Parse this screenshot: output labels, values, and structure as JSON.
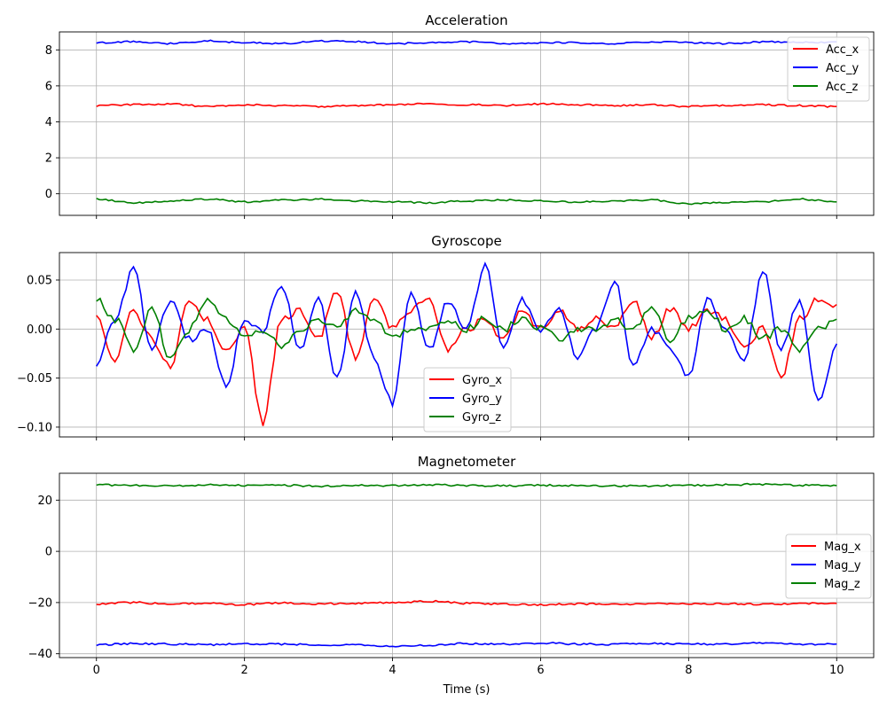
{
  "figure": {
    "xlabel": "Time (s)"
  },
  "chart_data": [
    {
      "type": "line",
      "title": "Acceleration",
      "xlabel": "",
      "ylabel": "",
      "xlim": [
        -0.5,
        10.5
      ],
      "ylim": [
        -1.2,
        9.0
      ],
      "xticks": [
        0,
        2,
        4,
        6,
        8,
        10
      ],
      "xticklabels": [
        "",
        "",
        "",
        "",
        "",
        ""
      ],
      "yticks": [
        0,
        2,
        4,
        6,
        8
      ],
      "yticklabels": [
        "0",
        "2",
        "4",
        "6",
        "8"
      ],
      "grid": true,
      "legend_position": "upper-right",
      "x": [
        0,
        0.5,
        1,
        1.5,
        2,
        2.5,
        3,
        3.5,
        4,
        4.5,
        5,
        5.5,
        6,
        6.5,
        7,
        7.5,
        8,
        8.5,
        9,
        9.5,
        10
      ],
      "series": [
        {
          "name": "Acc_x",
          "color": "#ff0000",
          "values": [
            4.9,
            4.95,
            5.0,
            4.85,
            4.95,
            4.9,
            4.85,
            4.9,
            4.95,
            5.0,
            4.95,
            4.9,
            5.0,
            4.95,
            4.9,
            4.95,
            4.85,
            4.9,
            4.95,
            4.9,
            4.85
          ]
        },
        {
          "name": "Acc_y",
          "color": "#0000ff",
          "values": [
            8.4,
            8.45,
            8.35,
            8.5,
            8.4,
            8.35,
            8.5,
            8.45,
            8.35,
            8.4,
            8.45,
            8.35,
            8.4,
            8.4,
            8.35,
            8.45,
            8.4,
            8.35,
            8.45,
            8.4,
            8.45
          ]
        },
        {
          "name": "Acc_z",
          "color": "#008000",
          "values": [
            -0.3,
            -0.5,
            -0.4,
            -0.3,
            -0.45,
            -0.35,
            -0.3,
            -0.4,
            -0.45,
            -0.5,
            -0.4,
            -0.35,
            -0.4,
            -0.45,
            -0.4,
            -0.35,
            -0.55,
            -0.5,
            -0.45,
            -0.3,
            -0.45
          ]
        }
      ]
    },
    {
      "type": "line",
      "title": "Gyroscope",
      "xlabel": "",
      "ylabel": "",
      "xlim": [
        -0.5,
        10.5
      ],
      "ylim": [
        -0.11,
        0.078
      ],
      "xticks": [
        0,
        2,
        4,
        6,
        8,
        10
      ],
      "xticklabels": [
        "",
        "",
        "",
        "",
        "",
        ""
      ],
      "yticks": [
        -0.1,
        -0.05,
        0.0,
        0.05
      ],
      "yticklabels": [
        "−0.10",
        "−0.05",
        "0.00",
        "0.05"
      ],
      "grid": true,
      "legend_position": "lower-center",
      "x": [
        0,
        0.25,
        0.5,
        0.75,
        1,
        1.25,
        1.5,
        1.75,
        2,
        2.25,
        2.5,
        2.75,
        3,
        3.25,
        3.5,
        3.75,
        4,
        4.25,
        4.5,
        4.75,
        5,
        5.25,
        5.5,
        5.75,
        6,
        6.25,
        6.5,
        6.75,
        7,
        7.25,
        7.5,
        7.75,
        8,
        8.25,
        8.5,
        8.75,
        9,
        9.25,
        9.5,
        9.75,
        10
      ],
      "series": [
        {
          "name": "Gyro_x",
          "color": "#ff0000",
          "values": [
            0.01,
            -0.03,
            0.02,
            -0.01,
            -0.04,
            0.03,
            0.01,
            -0.02,
            0.0,
            -0.095,
            0.01,
            0.02,
            -0.01,
            0.04,
            -0.03,
            0.03,
            0.0,
            0.02,
            0.03,
            -0.02,
            0.0,
            0.01,
            -0.01,
            0.02,
            0.0,
            0.02,
            0.0,
            0.01,
            0.0,
            0.03,
            -0.01,
            0.02,
            0.0,
            0.02,
            0.01,
            -0.02,
            0.0,
            -0.05,
            0.01,
            0.03,
            0.025
          ]
        },
        {
          "name": "Gyro_y",
          "color": "#0000ff",
          "values": [
            -0.04,
            0.01,
            0.06,
            -0.02,
            0.03,
            -0.01,
            0.0,
            -0.06,
            0.01,
            0.0,
            0.045,
            -0.02,
            0.03,
            -0.05,
            0.04,
            -0.03,
            -0.075,
            0.04,
            -0.02,
            0.03,
            0.0,
            0.065,
            -0.02,
            0.03,
            0.0,
            0.02,
            -0.03,
            0.0,
            0.05,
            -0.04,
            0.0,
            -0.02,
            -0.05,
            0.03,
            0.0,
            -0.03,
            0.06,
            -0.02,
            0.03,
            -0.075,
            -0.015
          ]
        },
        {
          "name": "Gyro_z",
          "color": "#008000",
          "values": [
            0.03,
            0.01,
            -0.02,
            0.02,
            -0.03,
            0.0,
            0.03,
            0.01,
            -0.01,
            0.0,
            -0.02,
            0.0,
            0.01,
            0.0,
            0.02,
            0.01,
            -0.01,
            0.0,
            0.0,
            0.01,
            0.0,
            0.01,
            0.0,
            0.01,
            0.0,
            -0.01,
            0.0,
            0.0,
            0.01,
            0.0,
            0.02,
            -0.01,
            0.01,
            0.02,
            0.0,
            0.01,
            -0.01,
            0.0,
            -0.02,
            0.0,
            0.01
          ]
        }
      ]
    },
    {
      "type": "line",
      "title": "Magnetometer",
      "xlabel": "Time (s)",
      "ylabel": "",
      "xlim": [
        -0.5,
        10.5
      ],
      "ylim": [
        -41.5,
        30.5
      ],
      "xticks": [
        0,
        2,
        4,
        6,
        8,
        10
      ],
      "xticklabels": [
        "0",
        "2",
        "4",
        "6",
        "8",
        "10"
      ],
      "yticks": [
        -40,
        -20,
        0,
        20
      ],
      "yticklabels": [
        "−40",
        "−20",
        "0",
        "20"
      ],
      "grid": true,
      "legend_position": "center-right",
      "x": [
        0,
        0.5,
        1,
        1.5,
        2,
        2.5,
        3,
        3.5,
        4,
        4.5,
        5,
        5.5,
        6,
        6.5,
        7,
        7.5,
        8,
        8.5,
        9,
        9.5,
        10
      ],
      "series": [
        {
          "name": "Mag_x",
          "color": "#ff0000",
          "values": [
            -20.5,
            -20.0,
            -20.5,
            -20.3,
            -20.8,
            -20.2,
            -20.5,
            -20.3,
            -20.0,
            -19.5,
            -20.3,
            -20.6,
            -20.8,
            -20.5,
            -20.7,
            -20.4,
            -20.6,
            -20.5,
            -20.7,
            -20.4,
            -20.3
          ]
        },
        {
          "name": "Mag_y",
          "color": "#0000ff",
          "values": [
            -36.5,
            -36.0,
            -36.2,
            -36.5,
            -36.2,
            -36.3,
            -36.5,
            -36.4,
            -37.0,
            -36.6,
            -36.0,
            -36.3,
            -35.8,
            -36.2,
            -36.3,
            -36.0,
            -36.2,
            -36.3,
            -35.8,
            -36.4,
            -36.2
          ]
        },
        {
          "name": "Mag_z",
          "color": "#008000",
          "values": [
            26.0,
            25.8,
            25.5,
            25.9,
            25.7,
            25.8,
            25.5,
            25.8,
            25.6,
            26.0,
            25.7,
            25.6,
            25.8,
            25.7,
            25.5,
            25.6,
            25.8,
            26.0,
            26.2,
            25.8,
            25.7
          ]
        }
      ]
    }
  ]
}
